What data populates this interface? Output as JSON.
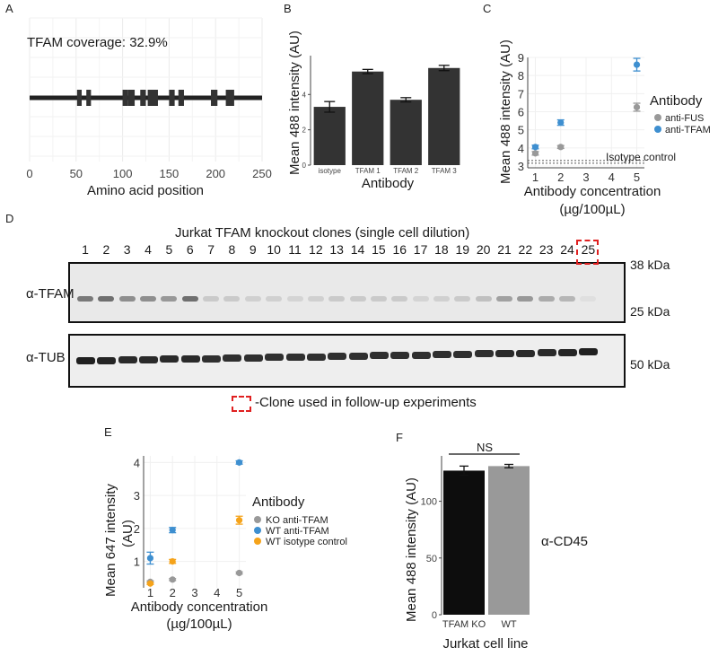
{
  "panel_labels": [
    "A",
    "B",
    "C",
    "D",
    "E",
    "F"
  ],
  "chart_data": [
    {
      "panel": "A",
      "type": "coverage",
      "annotation": "TFAM coverage: 32.9%",
      "xlabel": "Amino acid position",
      "xticks": [
        0,
        50,
        100,
        150,
        200,
        250
      ],
      "xlim": [
        0,
        250
      ],
      "segments": [
        [
          51,
          56
        ],
        [
          61,
          66
        ],
        [
          100,
          106
        ],
        [
          106,
          113
        ],
        [
          119,
          125
        ],
        [
          127,
          138
        ],
        [
          150,
          156
        ],
        [
          160,
          166
        ],
        [
          195,
          202
        ],
        [
          211,
          220
        ]
      ],
      "grid": true
    },
    {
      "panel": "B",
      "type": "bar",
      "categories": [
        "isotype",
        "TFAM 1",
        "TFAM 2",
        "TFAM 3"
      ],
      "values": [
        3.3,
        5.3,
        3.7,
        5.5
      ],
      "errors": [
        0.3,
        0.12,
        0.12,
        0.15
      ],
      "xlabel": "Antibody",
      "ylabel": "Mean 488 intensity (AU)",
      "yticks": [
        0,
        2,
        4
      ],
      "ylim": [
        0,
        6.2
      ],
      "bar_color": "#333333"
    },
    {
      "panel": "C",
      "type": "scatter",
      "x": [
        1,
        2,
        5
      ],
      "series": [
        {
          "name": "anti-FUS",
          "values": [
            3.7,
            4.05,
            6.25
          ],
          "errors": [
            0.1,
            0.08,
            0.22
          ],
          "color": "#999999"
        },
        {
          "name": "anti-TFAM",
          "values": [
            4.05,
            5.4,
            8.6
          ],
          "errors": [
            0.1,
            0.15,
            0.35
          ],
          "color": "#3e8fd0"
        }
      ],
      "reference_line": {
        "label": "Isotype control",
        "value": 3.3
      },
      "legend_title": "Antibody",
      "legend_position": "right",
      "xlabel": "Antibody concentration",
      "xlabel2": "(µg/100µL)",
      "ylabel": "Mean 488 intensity (AU)",
      "xticks": [
        1,
        2,
        3,
        4,
        5
      ],
      "yticks": [
        3,
        4,
        5,
        6,
        7,
        8,
        9
      ],
      "ylim": [
        2.9,
        9.0
      ],
      "xlim": [
        0.7,
        5.3
      ]
    },
    {
      "panel": "E",
      "type": "scatter",
      "x": [
        1,
        2,
        5
      ],
      "series": [
        {
          "name": "KO anti-TFAM",
          "values": [
            0.38,
            0.45,
            0.65
          ],
          "errors": [
            0.03,
            0.03,
            0.03
          ],
          "color": "#999999"
        },
        {
          "name": "WT anti-TFAM",
          "values": [
            1.1,
            1.95,
            4.0
          ],
          "errors": [
            0.18,
            0.08,
            0.05
          ],
          "color": "#3e8fd0"
        },
        {
          "name": "WT isotype control",
          "values": [
            0.33,
            1.0,
            2.25
          ],
          "errors": [
            0.03,
            0.06,
            0.12
          ],
          "color": "#f5a31a"
        }
      ],
      "legend_title": "Antibody",
      "legend_position": "right",
      "xlabel": "Antibody concentration",
      "xlabel2": "(µg/100µL)",
      "ylabel": "Mean 647 intensity",
      "ylabel2": "(AU)",
      "xticks": [
        1,
        2,
        3,
        4,
        5
      ],
      "yticks": [
        1,
        2,
        3,
        4
      ],
      "ylim": [
        0.2,
        4.2
      ],
      "xlim": [
        0.7,
        5.3
      ]
    },
    {
      "panel": "F",
      "type": "bar",
      "categories": [
        "TFAM KO",
        "WT"
      ],
      "values": [
        127,
        131
      ],
      "errors": [
        4,
        1.5
      ],
      "colors": [
        "#0d0d0d",
        "#999999"
      ],
      "significance": "NS",
      "xlabel": "Jurkat cell line",
      "ylabel": "Mean 488 intensity (AU)",
      "yticks": [
        0,
        50,
        100
      ],
      "ylim": [
        0,
        140
      ],
      "side_label": "α-CD45"
    }
  ],
  "blot": {
    "title": "Jurkat TFAM knockout clones (single cell dilution)",
    "lanes": [
      "1",
      "2",
      "3",
      "4",
      "5",
      "6",
      "7",
      "8",
      "9",
      "10",
      "11",
      "12",
      "13",
      "14",
      "15",
      "16",
      "17",
      "18",
      "19",
      "20",
      "21",
      "22",
      "23",
      "24",
      "25"
    ],
    "highlighted_lane": "25",
    "top_row_label": "α-TFAM",
    "bottom_row_label": "α-TUB",
    "markers_top": [
      "38 kDa",
      "25 kDa"
    ],
    "marker_bottom": "50 kDa",
    "legend_text": "-Clone used in follow-up experiments",
    "tfam_band_intensity": [
      0.55,
      0.6,
      0.45,
      0.45,
      0.4,
      0.6,
      0.15,
      0.15,
      0.12,
      0.12,
      0.1,
      0.12,
      0.15,
      0.15,
      0.15,
      0.15,
      0.1,
      0.12,
      0.15,
      0.2,
      0.35,
      0.4,
      0.3,
      0.25,
      0.05
    ],
    "tub_band_intensity": [
      0.95,
      0.92,
      0.9,
      0.9,
      0.9,
      0.9,
      0.88,
      0.88,
      0.88,
      0.88,
      0.88,
      0.88,
      0.88,
      0.88,
      0.88,
      0.88,
      0.88,
      0.88,
      0.88,
      0.88,
      0.9,
      0.9,
      0.9,
      0.92,
      0.95
    ]
  }
}
